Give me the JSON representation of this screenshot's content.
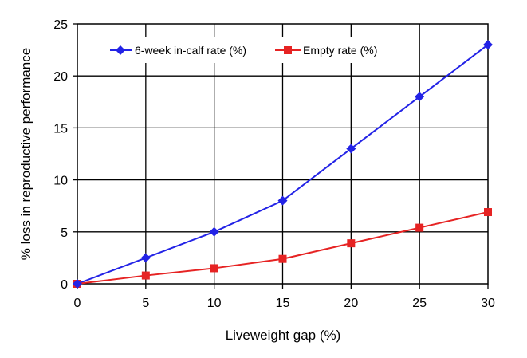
{
  "chart_data": {
    "type": "line",
    "title": "",
    "xlabel": "Liveweight gap (%)",
    "ylabel": "% loss in reproductive performance",
    "x": [
      0,
      5,
      10,
      15,
      20,
      25,
      30
    ],
    "xlim": [
      0,
      30
    ],
    "ylim": [
      0,
      25
    ],
    "xticks": [
      "0",
      "5",
      "10",
      "15",
      "20",
      "25",
      "30"
    ],
    "yticks": [
      "0",
      "5",
      "10",
      "15",
      "20",
      "25"
    ],
    "grid": true,
    "legend_position": "top",
    "series": [
      {
        "name": "6-week in-calf rate (%)",
        "values": [
          0,
          2.5,
          5,
          8,
          13,
          18,
          23
        ],
        "color": "#2323e6",
        "marker": "diamond"
      },
      {
        "name": "Empty rate (%)",
        "values": [
          0,
          0.8,
          1.5,
          2.4,
          3.9,
          5.4,
          6.9
        ],
        "color": "#e62323",
        "marker": "square"
      }
    ]
  }
}
